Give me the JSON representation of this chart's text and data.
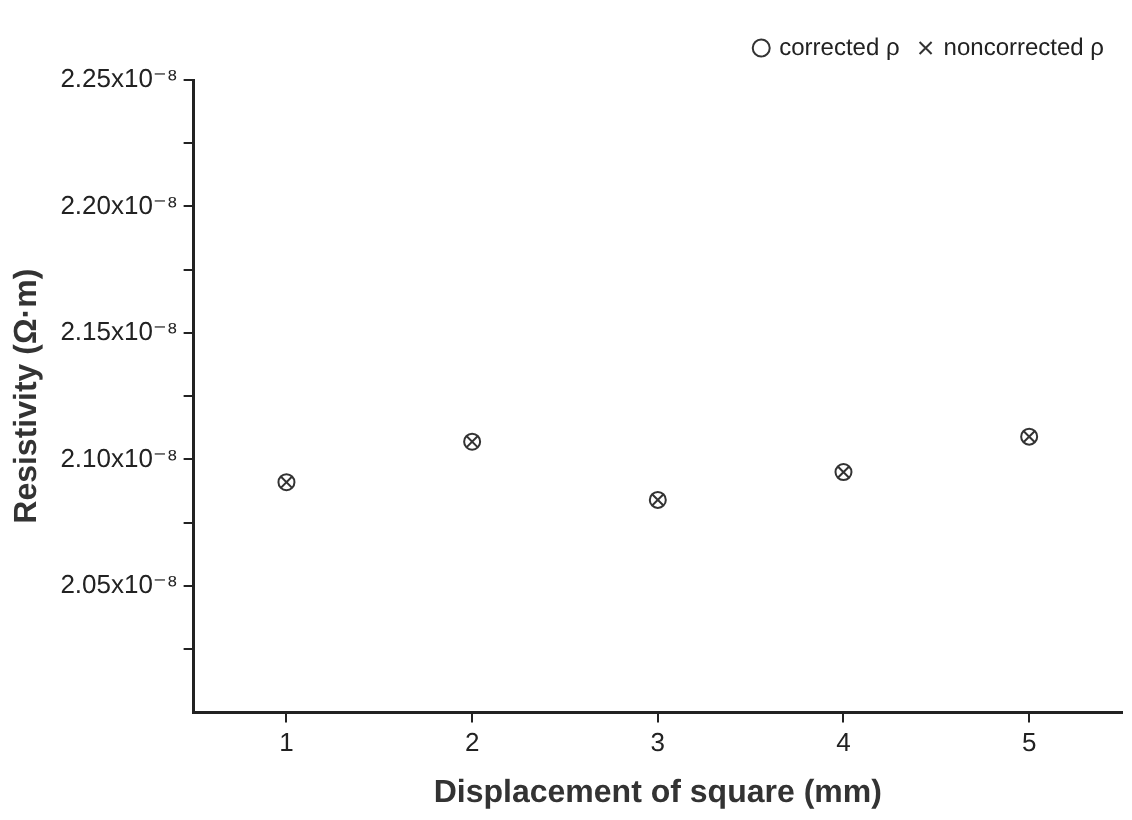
{
  "chart_data": {
    "type": "scatter",
    "xlabel": "Displacement of square (mm)",
    "ylabel": "Resistivity (Ω·m)",
    "x": [
      1,
      2,
      3,
      4,
      5
    ],
    "series": [
      {
        "name": "corrected ρ",
        "color": "#333333",
        "marker": "circle",
        "values": [
          2.091e-08,
          2.107e-08,
          2.084e-08,
          2.095e-08,
          2.109e-08
        ]
      },
      {
        "name": "noncorrected ρ",
        "color": "#333333",
        "marker": "cross",
        "values": [
          2.091e-08,
          2.107e-08,
          2.084e-08,
          2.095e-08,
          2.109e-08
        ]
      }
    ],
    "xlim": [
      0.5,
      5.5
    ],
    "xticks": [
      1,
      2,
      3,
      4,
      5
    ],
    "ylim": [
      2e-08,
      2.25e-08
    ],
    "yticks": [
      {
        "value": 2.025e-08,
        "label": null
      },
      {
        "value": 2.05e-08,
        "label": "2.05x10⁻⁸"
      },
      {
        "value": 2.075e-08,
        "label": null
      },
      {
        "value": 2.1e-08,
        "label": "2.10x10⁻⁸"
      },
      {
        "value": 2.125e-08,
        "label": null
      },
      {
        "value": 2.15e-08,
        "label": "2.15x10⁻⁸"
      },
      {
        "value": 2.175e-08,
        "label": null
      },
      {
        "value": 2.2e-08,
        "label": "2.20x10⁻⁸"
      },
      {
        "value": 2.225e-08,
        "label": null
      },
      {
        "value": 2.25e-08,
        "label": "2.25x10⁻⁸"
      }
    ],
    "grid": false,
    "legend": "top right"
  }
}
